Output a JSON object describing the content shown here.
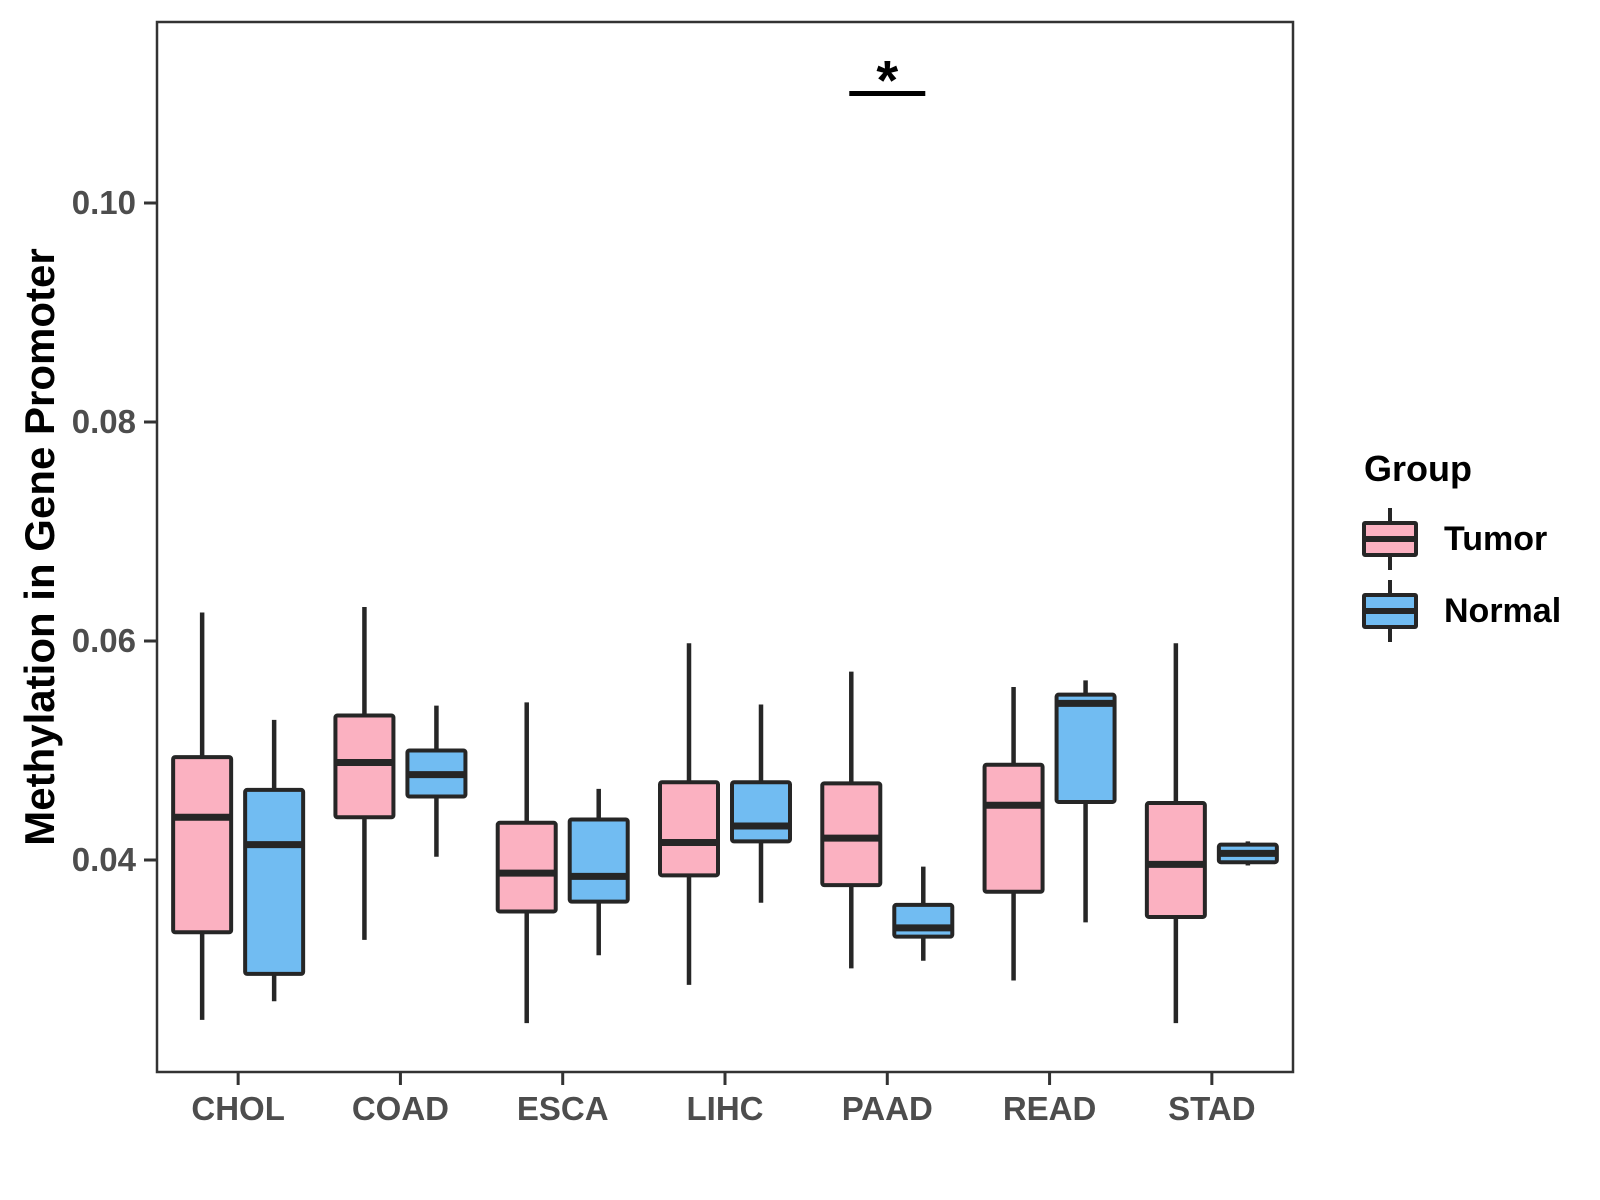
{
  "chart_data": {
    "type": "boxplot",
    "title": "",
    "ylabel": "Methylation in Gene Promoter",
    "xlabel": "",
    "categories": [
      "CHOL",
      "COAD",
      "ESCA",
      "LIHC",
      "PAAD",
      "READ",
      "STAD"
    ],
    "yticks": [
      0.04,
      0.06,
      0.08,
      0.1
    ],
    "ytick_labels": [
      "0.04",
      "0.06",
      "0.08",
      "0.10"
    ],
    "ylim": [
      0.021,
      0.117
    ],
    "grid": false,
    "legend_position": "right",
    "legend": {
      "title": "Group",
      "entries": [
        {
          "label": "Tumor",
          "color": "#FBB1C1"
        },
        {
          "label": "Normal",
          "color": "#71BCF2"
        }
      ]
    },
    "series": [
      {
        "name": "Tumor",
        "color": "#FBB1C1",
        "boxes": [
          {
            "category": "CHOL",
            "min": 0.0254,
            "q1": 0.0334,
            "median": 0.0439,
            "q3": 0.0494,
            "max": 0.0626
          },
          {
            "category": "COAD",
            "min": 0.0327,
            "q1": 0.0439,
            "median": 0.0489,
            "q3": 0.0532,
            "max": 0.0631
          },
          {
            "category": "ESCA",
            "min": 0.0251,
            "q1": 0.0353,
            "median": 0.0388,
            "q3": 0.0434,
            "max": 0.0544
          },
          {
            "category": "LIHC",
            "min": 0.0286,
            "q1": 0.0386,
            "median": 0.0416,
            "q3": 0.0471,
            "max": 0.0598
          },
          {
            "category": "PAAD",
            "min": 0.0301,
            "q1": 0.0377,
            "median": 0.042,
            "q3": 0.047,
            "max": 0.0572
          },
          {
            "category": "READ",
            "min": 0.029,
            "q1": 0.0371,
            "median": 0.045,
            "q3": 0.0487,
            "max": 0.0558
          },
          {
            "category": "STAD",
            "min": 0.0251,
            "q1": 0.0348,
            "median": 0.0396,
            "q3": 0.0452,
            "max": 0.0598
          }
        ]
      },
      {
        "name": "Normal",
        "color": "#71BCF2",
        "boxes": [
          {
            "category": "CHOL",
            "min": 0.0271,
            "q1": 0.0296,
            "median": 0.0414,
            "q3": 0.0464,
            "max": 0.0528
          },
          {
            "category": "COAD",
            "min": 0.0403,
            "q1": 0.0458,
            "median": 0.0478,
            "q3": 0.05,
            "max": 0.0541
          },
          {
            "category": "ESCA",
            "min": 0.0313,
            "q1": 0.0362,
            "median": 0.0385,
            "q3": 0.0437,
            "max": 0.0465
          },
          {
            "category": "LIHC",
            "min": 0.0361,
            "q1": 0.0417,
            "median": 0.0431,
            "q3": 0.0471,
            "max": 0.0542
          },
          {
            "category": "PAAD",
            "min": 0.0308,
            "q1": 0.033,
            "median": 0.0338,
            "q3": 0.0359,
            "max": 0.0394
          },
          {
            "category": "READ",
            "min": 0.0343,
            "q1": 0.0453,
            "median": 0.0543,
            "q3": 0.0551,
            "max": 0.0564
          },
          {
            "category": "STAD",
            "min": 0.0395,
            "q1": 0.0398,
            "median": 0.0406,
            "q3": 0.0414,
            "max": 0.0417
          }
        ]
      }
    ],
    "annotation": {
      "label": "*",
      "category": "PAAD",
      "bar_y": 0.11,
      "connects": [
        "Tumor",
        "Normal"
      ]
    }
  },
  "colors": {
    "box_outline": "#262626",
    "axis_text": "#4d4d4d",
    "axis_line": "#333333",
    "background": "#ffffff"
  }
}
